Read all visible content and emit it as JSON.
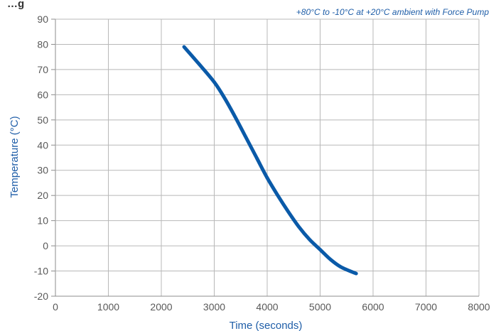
{
  "chart_data": {
    "type": "line",
    "title": "…g",
    "subtitle": "+80°C to -10°C at +20°C ambient with Force Pump",
    "xlabel": "Time (seconds)",
    "ylabel": "Temperature (°C)",
    "xlim": [
      0,
      8000
    ],
    "ylim": [
      -20,
      90
    ],
    "x_ticks": [
      "0",
      "1000",
      "2000",
      "3000",
      "4000",
      "5000",
      "6000",
      "7000",
      "8000"
    ],
    "y_ticks": [
      "90",
      "80",
      "70",
      "60",
      "50",
      "40",
      "30",
      "20",
      "10",
      "0",
      "-10",
      "-20"
    ],
    "grid": true,
    "series": [
      {
        "x": [
          2430,
          2700,
          3000,
          3200,
          3400,
          3600,
          3800,
          4000,
          4200,
          4400,
          4600,
          4800,
          5000,
          5200,
          5400,
          5680
        ],
        "y": [
          79,
          72.5,
          65,
          58.5,
          51,
          43,
          35,
          27,
          20,
          13.5,
          7.5,
          2.5,
          -1.5,
          -5.5,
          -8.5,
          -11
        ]
      }
    ],
    "colors": {
      "line": "#0a5aa8",
      "grid": "#b8b8b8",
      "axis": "#8c8c8c"
    }
  }
}
